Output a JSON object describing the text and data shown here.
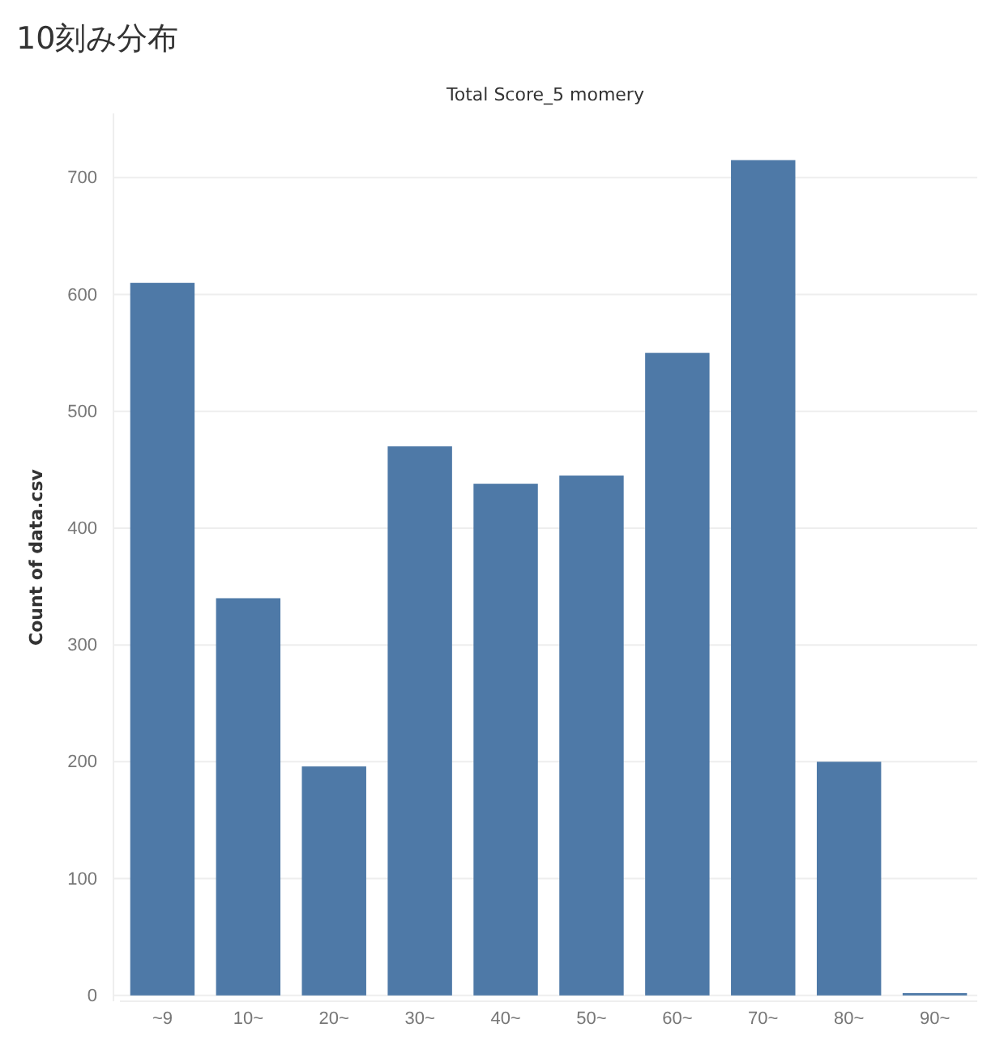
{
  "chart_data": {
    "type": "bar",
    "title": "10刻み分布",
    "subtitle": "Total Score_5 momery",
    "ylabel": "Count of data.csv",
    "categories": [
      "~9",
      "10~",
      "20~",
      "30~",
      "40~",
      "50~",
      "60~",
      "70~",
      "80~",
      "90~"
    ],
    "values": [
      610,
      340,
      196,
      470,
      438,
      445,
      550,
      715,
      200,
      2
    ],
    "color": "#4e79a7",
    "ylim": [
      -5,
      755
    ],
    "yticks": [
      0,
      100,
      200,
      300,
      400,
      500,
      600,
      700
    ],
    "grid": "y"
  }
}
